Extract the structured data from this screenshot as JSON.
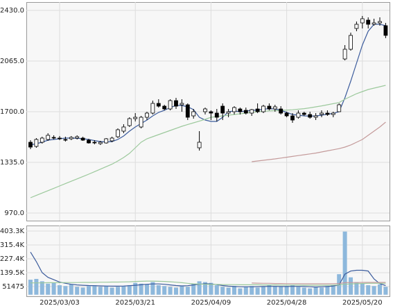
{
  "chart_data": [
    {
      "type": "candlestick",
      "ylim": [
        915,
        2490
      ],
      "yticks": [
        {
          "value": 2430,
          "label": "2430.0"
        },
        {
          "value": 2065,
          "label": "2065.0"
        },
        {
          "value": 1700,
          "label": "1700.0"
        },
        {
          "value": 1335,
          "label": "1335.0"
        },
        {
          "value": 970,
          "label": "970.0"
        }
      ],
      "grid": true,
      "up_color": "#ffffff",
      "down_color": "#000000",
      "open": [
        1480,
        1450,
        1480,
        1500,
        1515,
        1510,
        1500,
        1505,
        1510,
        1510,
        1495,
        1480,
        1470,
        1475,
        1490,
        1520,
        1560,
        1600,
        1650,
        1590,
        1660,
        1690,
        1760,
        1740,
        1720,
        1780,
        1750,
        1750,
        1670,
        1440,
        1700,
        1700,
        1690,
        1740,
        1690,
        1700,
        1720,
        1710,
        1690,
        1720,
        1700,
        1740,
        1720,
        1720,
        1690,
        1670,
        1660,
        1690,
        1680,
        1660,
        1680,
        1690,
        1680,
        1700,
        2080,
        2150,
        2300,
        2340,
        2360,
        2330,
        2340,
        2320
      ],
      "high": [
        1495,
        1510,
        1520,
        1545,
        1530,
        1525,
        1520,
        1525,
        1530,
        1520,
        1505,
        1495,
        1490,
        1510,
        1520,
        1580,
        1610,
        1660,
        1690,
        1670,
        1700,
        1780,
        1790,
        1750,
        1790,
        1800,
        1790,
        1760,
        1720,
        1560,
        1730,
        1710,
        1720,
        1760,
        1720,
        1740,
        1730,
        1730,
        1720,
        1760,
        1750,
        1760,
        1750,
        1740,
        1700,
        1690,
        1710,
        1700,
        1700,
        1690,
        1710,
        1710,
        1700,
        1760,
        2180,
        2270,
        2350,
        2390,
        2380,
        2370,
        2380,
        2340
      ],
      "low": [
        1430,
        1440,
        1470,
        1490,
        1500,
        1495,
        1485,
        1495,
        1500,
        1490,
        1470,
        1465,
        1460,
        1470,
        1480,
        1510,
        1545,
        1590,
        1630,
        1580,
        1640,
        1680,
        1730,
        1710,
        1710,
        1720,
        1700,
        1640,
        1650,
        1420,
        1680,
        1640,
        1630,
        1640,
        1660,
        1680,
        1680,
        1680,
        1670,
        1690,
        1690,
        1710,
        1700,
        1680,
        1660,
        1620,
        1650,
        1670,
        1650,
        1640,
        1660,
        1670,
        1660,
        1700,
        2070,
        2140,
        2280,
        2300,
        2300,
        2320,
        2320,
        2230
      ],
      "close": [
        1445,
        1500,
        1510,
        1530,
        1510,
        1505,
        1495,
        1515,
        1520,
        1495,
        1475,
        1475,
        1480,
        1505,
        1510,
        1570,
        1590,
        1650,
        1660,
        1660,
        1690,
        1760,
        1740,
        1720,
        1780,
        1740,
        1760,
        1660,
        1700,
        1480,
        1720,
        1690,
        1660,
        1690,
        1700,
        1730,
        1700,
        1690,
        1715,
        1700,
        1740,
        1720,
        1735,
        1690,
        1670,
        1640,
        1690,
        1680,
        1660,
        1670,
        1690,
        1680,
        1690,
        1750,
        2150,
        2250,
        2330,
        2370,
        2330,
        2340,
        2350,
        2250
      ],
      "series": [
        {
          "color": "#3b5b9c",
          "values": [
            1460,
            1470,
            1480,
            1495,
            1500,
            1505,
            1510,
            1510,
            1508,
            1506,
            1500,
            1492,
            1485,
            1482,
            1485,
            1500,
            1525,
            1560,
            1590,
            1615,
            1640,
            1670,
            1695,
            1710,
            1730,
            1745,
            1745,
            1735,
            1715,
            1660,
            1640,
            1630,
            1630,
            1660,
            1700,
            1705,
            1700,
            1705,
            1710,
            1712,
            1718,
            1722,
            1720,
            1710,
            1695,
            1680,
            1675,
            1670,
            1668,
            1670,
            1675,
            1682,
            1688,
            1700,
            1800,
            1920,
            2050,
            2180,
            2280,
            2330,
            2330,
            2320
          ]
        },
        {
          "color": "#9cc99c",
          "values": [
            1080,
            1097,
            1114,
            1131,
            1148,
            1165,
            1182,
            1199,
            1216,
            1233,
            1250,
            1268,
            1286,
            1304,
            1322,
            1345,
            1370,
            1400,
            1440,
            1480,
            1505,
            1520,
            1535,
            1550,
            1565,
            1580,
            1595,
            1608,
            1620,
            1632,
            1645,
            1660,
            1665,
            1670,
            1675,
            1680,
            1685,
            1690,
            1695,
            1700,
            1703,
            1706,
            1708,
            1710,
            1712,
            1714,
            1718,
            1722,
            1728,
            1735,
            1742,
            1750,
            1758,
            1766,
            1790,
            1810,
            1830,
            1845,
            1860,
            1870,
            1880,
            1890
          ]
        },
        {
          "color": "#c49a9a",
          "values": [
            null,
            null,
            null,
            null,
            null,
            null,
            null,
            null,
            null,
            null,
            null,
            null,
            null,
            null,
            null,
            null,
            null,
            null,
            null,
            null,
            null,
            null,
            null,
            null,
            null,
            null,
            null,
            null,
            null,
            null,
            null,
            null,
            null,
            null,
            null,
            null,
            null,
            null,
            1340,
            1345,
            1350,
            1355,
            1360,
            1366,
            1372,
            1378,
            1384,
            1390,
            1396,
            1402,
            1410,
            1418,
            1426,
            1434,
            1445,
            1460,
            1480,
            1500,
            1530,
            1560,
            1590,
            1625
          ]
        }
      ]
    },
    {
      "type": "bar",
      "categories": [
        null,
        null,
        null,
        null,
        null,
        "2025/03/03",
        null,
        null,
        null,
        null,
        null,
        null,
        null,
        null,
        null,
        null,
        null,
        null,
        "2025/03/21",
        null,
        null,
        null,
        null,
        null,
        null,
        null,
        null,
        null,
        null,
        null,
        null,
        "2025/04/09",
        null,
        null,
        null,
        null,
        null,
        null,
        null,
        null,
        null,
        null,
        null,
        null,
        "2025/04/28",
        null,
        null,
        null,
        null,
        null,
        null,
        null,
        null,
        null,
        null,
        null,
        null,
        "2025/05/20",
        null,
        null,
        null,
        null
      ],
      "values": [
        95000,
        100000,
        85000,
        70000,
        75000,
        60000,
        55000,
        65000,
        50000,
        45000,
        55000,
        60000,
        50000,
        55000,
        45000,
        50000,
        55000,
        60000,
        75000,
        70000,
        65000,
        80000,
        60000,
        55000,
        50000,
        45000,
        55000,
        50000,
        70000,
        85000,
        80000,
        75000,
        60000,
        50000,
        45000,
        55000,
        40000,
        50000,
        55000,
        45000,
        50000,
        60000,
        55000,
        50000,
        55000,
        60000,
        50000,
        45000,
        40000,
        50000,
        45000,
        55000,
        60000,
        130000,
        400000,
        110000,
        80000,
        70000,
        60000,
        55000,
        65000,
        50000
      ],
      "color": "#8db8dc",
      "ylim": [
        -10100,
        438500
      ],
      "yticks": [
        {
          "value": 403300,
          "label": "403.3K"
        },
        {
          "value": 315400,
          "label": "315.4K"
        },
        {
          "value": 227400,
          "label": "227.4K"
        },
        {
          "value": 139500,
          "label": "139.5K"
        },
        51475
      ],
      "grid": true,
      "series": [
        {
          "color": "#3b5b9c",
          "values": [
            270000,
            210000,
            140000,
            110000,
            95000,
            80000,
            72000,
            66000,
            62000,
            60000,
            58000,
            57000,
            56000,
            55000,
            54000,
            54000,
            55000,
            57000,
            60000,
            63000,
            66000,
            68000,
            68000,
            66000,
            62000,
            58000,
            56000,
            57000,
            62000,
            66000,
            70000,
            68000,
            64000,
            58000,
            54000,
            52000,
            50000,
            50000,
            50000,
            51000,
            52000,
            53000,
            53000,
            52000,
            52000,
            53000,
            53000,
            52000,
            50000,
            49000,
            50000,
            52000,
            55000,
            62000,
            130000,
            150000,
            155000,
            155000,
            150000,
            100000,
            70000,
            58000
          ]
        },
        {
          "color": "#9cc99c",
          "values": [
            75000,
            75000,
            75000,
            76000,
            76000,
            76000,
            77000,
            77000,
            77000,
            78000,
            78000,
            78000,
            79000,
            79000,
            80000,
            80000,
            81000,
            82000,
            84000,
            85000,
            86000,
            86000,
            85000,
            84000,
            82000,
            79000,
            76000,
            72000,
            69000,
            67000,
            66000,
            65000,
            65000,
            64000,
            64000,
            64000,
            63000,
            63000,
            63000,
            63000,
            62000,
            62000,
            62000,
            61000,
            61000,
            61000,
            61000,
            60000,
            60000,
            60000,
            60000,
            60000,
            61000,
            62000,
            66000,
            68000,
            70000,
            71000,
            72000,
            72000,
            72000,
            72000
          ]
        },
        {
          "color": "#c49a9a",
          "values": [
            null,
            null,
            null,
            null,
            null,
            null,
            null,
            null,
            null,
            null,
            null,
            null,
            null,
            null,
            null,
            null,
            null,
            null,
            null,
            null,
            null,
            null,
            null,
            null,
            null,
            null,
            null,
            null,
            null,
            null,
            null,
            null,
            null,
            null,
            null,
            null,
            null,
            null,
            74000,
            73000,
            72000,
            72000,
            71000,
            71000,
            70000,
            70000,
            70000,
            69000,
            69000,
            69000,
            69000,
            69000,
            70000,
            71000,
            76000,
            77000,
            77000,
            78000,
            78000,
            78000,
            78000,
            78000
          ]
        }
      ]
    }
  ]
}
